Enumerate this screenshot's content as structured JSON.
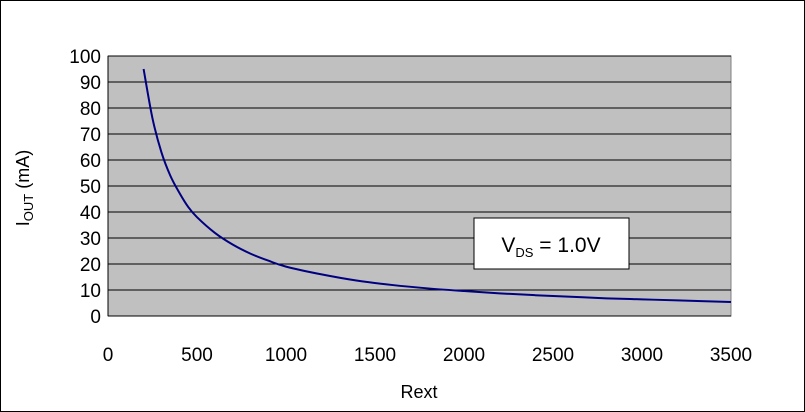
{
  "chart_data": {
    "type": "line",
    "xlabel": "Rext",
    "ylabel": {
      "main": "I",
      "sub": "OUT",
      "suffix": " (mA)"
    },
    "xlim": [
      0,
      3500
    ],
    "ylim": [
      0,
      100
    ],
    "xticks": [
      "0",
      "500",
      "1000",
      "1500",
      "2000",
      "2500",
      "3000",
      "3500"
    ],
    "yticks": [
      "0",
      "10",
      "20",
      "30",
      "40",
      "50",
      "60",
      "70",
      "80",
      "90",
      "100"
    ],
    "grid": "horizontal",
    "plot_background": "#c0c0c0",
    "series": [
      {
        "color": "#000080",
        "x": [
          200,
          250,
          300,
          350,
          400,
          450,
          500,
          600,
          700,
          800,
          900,
          1000,
          1200,
          1400,
          1600,
          1800,
          2000,
          2200,
          2400,
          2600,
          2800,
          3000,
          3200,
          3500
        ],
        "y": [
          95,
          76,
          63,
          54,
          47.5,
          42,
          38,
          32,
          27.5,
          24,
          21.3,
          19,
          16,
          13.6,
          11.9,
          10.6,
          9.6,
          8.7,
          8.0,
          7.4,
          6.8,
          6.4,
          6.0,
          5.4
        ]
      }
    ],
    "annotation": {
      "main": "V",
      "sub": "DS",
      "suffix": " = 1.0V"
    }
  }
}
